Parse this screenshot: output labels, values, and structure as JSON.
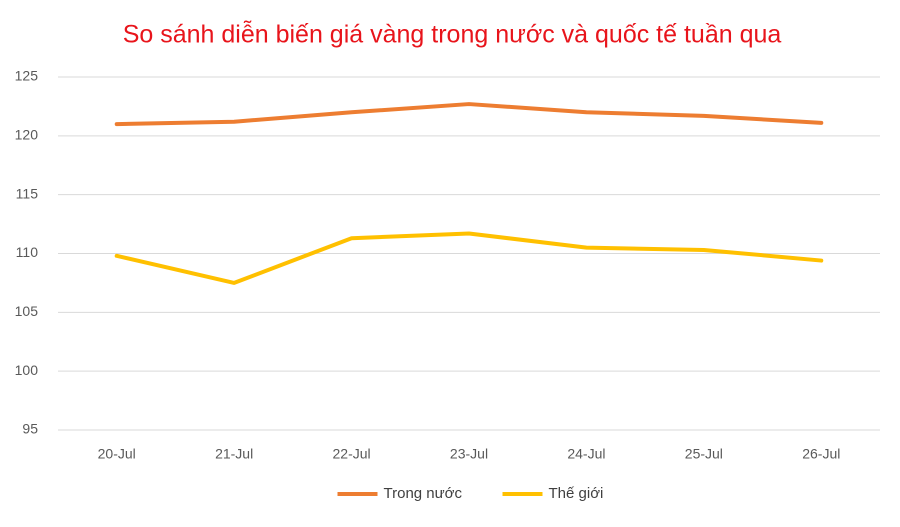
{
  "chart_data": {
    "type": "line",
    "title": "So sánh diễn biến giá vàng trong nước và quốc tế tuần qua",
    "categories": [
      "20-Jul",
      "21-Jul",
      "22-Jul",
      "23-Jul",
      "24-Jul",
      "25-Jul",
      "26-Jul"
    ],
    "series": [
      {
        "name": "Trong nước",
        "color": "#ed7d31",
        "values": [
          121.0,
          121.2,
          122.0,
          122.7,
          122.0,
          121.7,
          121.1
        ]
      },
      {
        "name": "Thế giới",
        "color": "#ffc000",
        "values": [
          109.8,
          107.5,
          111.3,
          111.7,
          110.5,
          110.3,
          109.4
        ]
      }
    ],
    "ylim": [
      95,
      125
    ],
    "yticks": [
      95,
      100,
      105,
      110,
      115,
      120,
      125
    ],
    "grid": true,
    "legend": "bottom"
  }
}
